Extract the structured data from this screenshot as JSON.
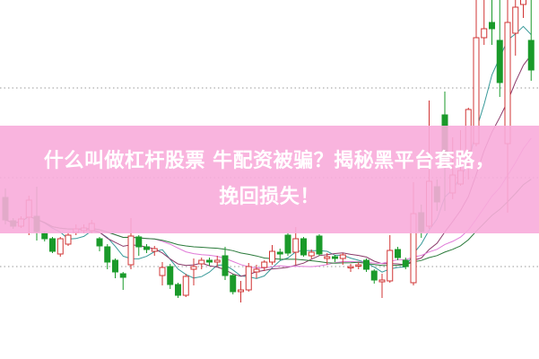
{
  "banner": {
    "line1": "什么叫做杠杆股票 牛配资被骗？揭秘黑平台套路，",
    "line2": "挽回损失！",
    "background_color": "#f8acda"
  },
  "chart_data": {
    "type": "candlestick",
    "title": "",
    "xlabel": "",
    "ylabel": "",
    "grid": "dotted horizontal lines",
    "up_color": "#d03434",
    "down_color": "#1a9a2a",
    "moving_averages": [
      {
        "period": 5,
        "color": "#3a9a9a"
      },
      {
        "period": 10,
        "color": "#8a3a6a"
      },
      {
        "period": 20,
        "color": "#e07ad8"
      },
      {
        "period": 30,
        "color": "#2a7a3a"
      }
    ],
    "ohlc": [
      [
        180,
        190,
        150,
        155
      ],
      [
        154,
        157,
        145,
        148
      ],
      [
        148,
        159,
        146,
        156
      ],
      [
        158,
        182,
        138,
        177
      ],
      [
        159,
        192,
        132,
        142
      ],
      [
        140,
        142,
        131,
        134
      ],
      [
        134,
        136,
        118,
        120
      ],
      [
        117,
        136,
        114,
        134
      ],
      [
        128,
        141,
        126,
        138
      ],
      [
        141,
        150,
        138,
        145
      ],
      [
        143,
        150,
        140,
        146
      ],
      [
        143,
        155,
        140,
        151
      ],
      [
        134,
        136,
        120,
        126
      ],
      [
        125,
        128,
        100,
        108
      ],
      [
        110,
        112,
        90,
        97
      ],
      [
        95,
        97,
        77,
        91
      ],
      [
        105,
        157,
        100,
        137
      ],
      [
        136,
        138,
        115,
        125
      ],
      [
        125,
        128,
        118,
        122
      ],
      [
        120,
        126,
        115,
        123
      ],
      [
        93,
        108,
        82,
        102
      ],
      [
        103,
        106,
        78,
        83
      ],
      [
        83,
        85,
        68,
        71
      ],
      [
        71,
        95,
        69,
        92
      ],
      [
        100,
        112,
        82,
        103
      ],
      [
        106,
        113,
        100,
        110
      ],
      [
        110,
        113,
        104,
        108
      ],
      [
        108,
        115,
        103,
        110
      ],
      [
        115,
        125,
        88,
        93
      ],
      [
        93,
        95,
        72,
        75
      ],
      [
        75,
        87,
        63,
        77
      ],
      [
        77,
        107,
        75,
        103
      ],
      [
        97,
        105,
        90,
        100
      ],
      [
        102,
        110,
        98,
        108
      ],
      [
        108,
        127,
        105,
        120
      ],
      [
        119,
        123,
        110,
        117
      ],
      [
        138,
        140,
        115,
        118
      ],
      [
        119,
        147,
        105,
        134
      ],
      [
        134,
        136,
        114,
        116
      ],
      [
        115,
        122,
        112,
        119
      ],
      [
        137,
        139,
        115,
        117
      ],
      [
        112,
        118,
        105,
        114
      ],
      [
        114,
        116,
        108,
        112
      ],
      [
        112,
        118,
        105,
        116
      ],
      [
        102,
        106,
        97,
        103
      ],
      [
        104,
        108,
        100,
        105
      ],
      [
        110,
        112,
        97,
        100
      ],
      [
        98,
        100,
        84,
        88
      ],
      [
        86,
        95,
        68,
        88
      ],
      [
        87,
        138,
        85,
        121
      ],
      [
        122,
        125,
        110,
        113
      ],
      [
        110,
        113,
        100,
        103
      ],
      [
        85,
        197,
        82,
        162
      ],
      [
        163,
        172,
        135,
        142
      ],
      [
        148,
        288,
        145,
        198
      ],
      [
        192,
        200,
        165,
        175
      ],
      [
        272,
        298,
        165,
        225
      ],
      [
        185,
        247,
        178,
        205
      ],
      [
        195,
        255,
        193,
        210
      ],
      [
        232,
        280,
        200,
        278
      ],
      [
        240,
        400,
        237,
        358
      ],
      [
        358,
        400,
        350,
        368
      ],
      [
        375,
        400,
        350,
        368
      ],
      [
        355,
        400,
        292,
        308
      ],
      [
        240,
        400,
        163,
        375
      ],
      [
        363,
        400,
        338,
        392
      ],
      [
        395,
        420,
        380,
        410
      ],
      [
        355,
        400,
        310,
        322
      ]
    ]
  }
}
